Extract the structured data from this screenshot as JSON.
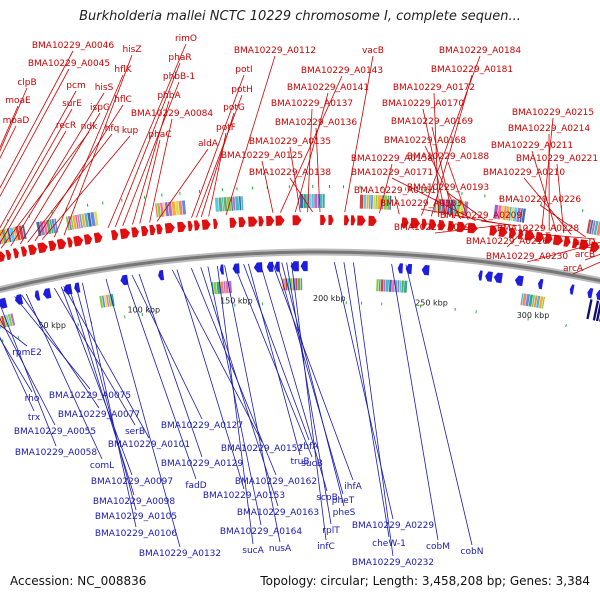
{
  "title": "Burkholderia mallei NCTC 10229 chromosome I, complete sequen...",
  "accession": "Accession: NC_008836",
  "summary": "Topology: circular; Length: 3,458,208 bp; Genes: 3,384",
  "colors": {
    "forward_strand": "#e01010",
    "reverse_strand": "#1e1ee0",
    "forward_label": "#cc0000",
    "reverse_label": "#1a1ab0",
    "backbone": "#777777",
    "marker": "#22aa33"
  },
  "kbp_ticks": [
    "50 kbp",
    "100 kbp",
    "150 kbp",
    "200 kbp",
    "250 kbp",
    "300 kbp"
  ],
  "forward_labels": [
    "BMA10229_A0046",
    "BMA10229_A0045",
    "clpB",
    "moaE",
    "moaD",
    "pcm",
    "surE",
    "recR",
    "ndk",
    "hisS",
    "ispG",
    "hfq",
    "hflC",
    "kup",
    "hflK",
    "hisZ",
    "rimO",
    "phaR",
    "phbB-1",
    "phbA",
    "phaC",
    "BMA10229_A0084",
    "aldA",
    "potI",
    "potH",
    "potG",
    "potF",
    "BMA10229_A0112",
    "BMA10229_A0143",
    "BMA10229_A0141",
    "BMA10229_A0137",
    "BMA10229_A0136",
    "BMA10229_A0135",
    "BMA10229_A0125",
    "BMA10229_A0138",
    "vacB",
    "BMA10229_A0158",
    "BMA10229_A0161",
    "BMA10229_A0184",
    "BMA10229_A0181",
    "BMA10229_A0172",
    "BMA10229_A0170",
    "BMA10229_A0169",
    "BMA10229_A0168",
    "BMA10229_A0188",
    "BMA10229_A0171",
    "BMA10229_A0193",
    "BMA10229_A0183",
    "BMA10229_A0209",
    "BMA10229_A0195",
    "BMA10229_A0216",
    "BMA10229_A0215",
    "BMA10229_A0214",
    "BMA10229_A0211",
    "BMA10229_A0221",
    "BMA10229_A0210",
    "BMA10229_A0226",
    "BMA10229_A0228",
    "BMA10229_A0230",
    "arcD",
    "arcB",
    "arcA"
  ],
  "reverse_labels": [
    "rpmE2",
    "rho",
    "trx",
    "BMA10229_A0055",
    "BMA10229_A0058",
    "BMA10229_A0075",
    "BMA10229_A0077",
    "comL",
    "serB",
    "BMA10229_A0101",
    "BMA10229_A0097",
    "BMA10229_A0098",
    "BMA10229_A0105",
    "BMA10229_A0106",
    "BMA10229_A0132",
    "fadD",
    "BMA10229_A0127",
    "BMA10229_A0129",
    "BMA10229_A0152",
    "BMA10229_A0153",
    "BMA10229_A0162",
    "BMA10229_A0163",
    "BMA10229_A0164",
    "sucB",
    "sucA",
    "nusA",
    "rbfA",
    "truB",
    "scpB",
    "ihfA",
    "pheT",
    "pheS",
    "rplT",
    "infC",
    "BMA10229_A0229",
    "cheW-1",
    "BMA10229_A0232",
    "cobM",
    "cobN"
  ]
}
